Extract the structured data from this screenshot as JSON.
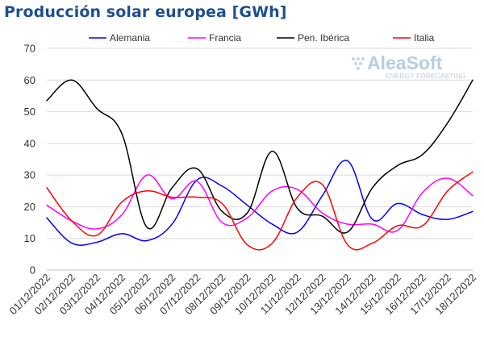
{
  "header": {
    "title": "Producción solar europea [GWh]"
  },
  "watermark": {
    "brand": "AleaSoft",
    "tagline": "ENERGY FORECASTING"
  },
  "chart_data": {
    "type": "line",
    "title": "Producción solar europea [GWh]",
    "xlabel": "",
    "ylabel": "",
    "ylim": [
      0,
      70
    ],
    "yticks": [
      0,
      10,
      20,
      30,
      40,
      50,
      60,
      70
    ],
    "grid": "horizontal",
    "legend_position": "top",
    "categories": [
      "01/12/2022",
      "02/12/2022",
      "03/12/2022",
      "04/12/2022",
      "05/12/2022",
      "06/12/2022",
      "07/12/2022",
      "08/12/2022",
      "09/12/2022",
      "10/12/2022",
      "11/12/2022",
      "12/12/2022",
      "13/12/2022",
      "14/12/2022",
      "15/12/2022",
      "16/12/2022",
      "17/12/2022",
      "18/12/2022"
    ],
    "series": [
      {
        "name": "Alemania",
        "color": "#0000ff",
        "values": [
          16.5,
          8.5,
          8.8,
          11.5,
          9.3,
          14.5,
          28.5,
          26.5,
          20.5,
          14.5,
          12.0,
          23.5,
          34.5,
          16.0,
          21.0,
          17.5,
          16.0,
          18.5
        ]
      },
      {
        "name": "Francia",
        "color": "#ff00ff",
        "values": [
          20.5,
          15.5,
          13.0,
          17.5,
          30.0,
          22.5,
          28.0,
          15.0,
          16.5,
          25.0,
          25.5,
          18.0,
          14.5,
          14.5,
          12.5,
          24.5,
          29.0,
          23.5
        ]
      },
      {
        "name": "Pen. Ibérica",
        "color": "#000000",
        "values": [
          53.5,
          60.0,
          51.0,
          43.0,
          13.5,
          26.0,
          32.0,
          18.5,
          18.0,
          37.5,
          19.5,
          17.0,
          12.0,
          26.0,
          33.0,
          36.5,
          46.5,
          60.0
        ]
      },
      {
        "name": "Italia",
        "color": "#ff0000",
        "values": [
          26.0,
          15.5,
          11.0,
          21.5,
          25.0,
          23.0,
          23.0,
          21.0,
          8.0,
          8.5,
          23.0,
          27.0,
          8.0,
          8.5,
          14.0,
          14.0,
          25.0,
          31.0
        ]
      }
    ]
  }
}
